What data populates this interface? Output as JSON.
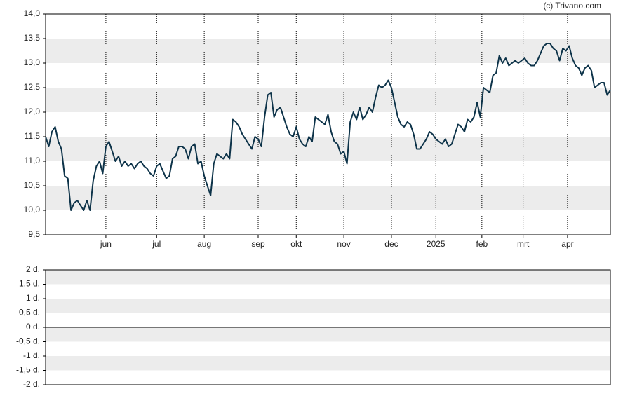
{
  "source": "(c) Trivano.com",
  "chart_data": [
    {
      "type": "line",
      "color": "#0d3349",
      "banded": true,
      "xlim": [
        0,
        178
      ],
      "xticks": [
        {
          "value": 19,
          "label": "jun"
        },
        {
          "value": 35,
          "label": "jul"
        },
        {
          "value": 50,
          "label": "aug"
        },
        {
          "value": 67,
          "label": "sep"
        },
        {
          "value": 79,
          "label": "okt"
        },
        {
          "value": 94,
          "label": "nov"
        },
        {
          "value": 109,
          "label": "dec"
        },
        {
          "value": 123,
          "label": "2025"
        },
        {
          "value": 137.5,
          "label": "feb"
        },
        {
          "value": 150.5,
          "label": "mrt"
        },
        {
          "value": 164.5,
          "label": "apr"
        }
      ],
      "ylim": [
        9.5,
        14
      ],
      "yticks": [
        {
          "value": 9.5,
          "label": "9,5"
        },
        {
          "value": 10,
          "label": "10,0"
        },
        {
          "value": 10.5,
          "label": "10,5"
        },
        {
          "value": 11,
          "label": "11,0"
        },
        {
          "value": 11.5,
          "label": "11,5"
        },
        {
          "value": 12,
          "label": "12,0"
        },
        {
          "value": 12.5,
          "label": "12,5"
        },
        {
          "value": 13,
          "label": "13,0"
        },
        {
          "value": 13.5,
          "label": "13,5"
        },
        {
          "value": 14,
          "label": "14,0"
        }
      ],
      "values": [
        11.5,
        11.3,
        11.6,
        11.7,
        11.4,
        11.25,
        10.7,
        10.65,
        10.0,
        10.15,
        10.2,
        10.1,
        10.0,
        10.2,
        10.0,
        10.6,
        10.9,
        11.0,
        10.75,
        11.3,
        11.4,
        11.2,
        11.0,
        11.1,
        10.9,
        11.0,
        10.9,
        10.95,
        10.85,
        10.95,
        11.0,
        10.9,
        10.85,
        10.75,
        10.7,
        10.9,
        10.95,
        10.8,
        10.65,
        10.7,
        11.05,
        11.1,
        11.3,
        11.3,
        11.25,
        11.05,
        11.3,
        11.35,
        10.95,
        11.0,
        10.7,
        10.5,
        10.3,
        10.95,
        11.15,
        11.1,
        11.05,
        11.15,
        11.05,
        11.85,
        11.8,
        11.7,
        11.55,
        11.45,
        11.35,
        11.25,
        11.5,
        11.45,
        11.3,
        11.9,
        12.35,
        12.4,
        11.9,
        12.05,
        12.1,
        11.9,
        11.7,
        11.55,
        11.5,
        11.7,
        11.45,
        11.35,
        11.3,
        11.5,
        11.4,
        11.9,
        11.85,
        11.8,
        11.75,
        11.95,
        11.6,
        11.4,
        11.35,
        11.15,
        11.2,
        10.95,
        11.8,
        12.0,
        11.85,
        12.1,
        11.85,
        11.95,
        12.1,
        12.0,
        12.3,
        12.55,
        12.5,
        12.55,
        12.65,
        12.5,
        12.2,
        11.9,
        11.75,
        11.7,
        11.8,
        11.75,
        11.55,
        11.25,
        11.25,
        11.35,
        11.45,
        11.6,
        11.55,
        11.45,
        11.4,
        11.35,
        11.45,
        11.3,
        11.35,
        11.55,
        11.75,
        11.7,
        11.6,
        11.85,
        11.8,
        11.9,
        12.2,
        11.9,
        12.5,
        12.45,
        12.4,
        12.75,
        12.8,
        13.15,
        13.0,
        13.1,
        12.95,
        13.0,
        13.05,
        13.0,
        13.05,
        13.1,
        13.0,
        12.95,
        12.95,
        13.05,
        13.2,
        13.35,
        13.4,
        13.4,
        13.3,
        13.25,
        13.05,
        13.3,
        13.25,
        13.35,
        13.1,
        12.95,
        12.9,
        12.75,
        12.9,
        12.95,
        12.85,
        12.5,
        12.55,
        12.6,
        12.6,
        12.35,
        12.45
      ]
    },
    {
      "type": "bar",
      "banded": true,
      "zero_line": true,
      "ylim": [
        -2,
        2
      ],
      "yticks": [
        {
          "value": -2,
          "label": "-2 d."
        },
        {
          "value": -1.5,
          "label": "-1,5 d."
        },
        {
          "value": -1,
          "label": "-1 d."
        },
        {
          "value": -0.5,
          "label": "-0,5 d."
        },
        {
          "value": 0,
          "label": "0 d."
        },
        {
          "value": 0.5,
          "label": "0,5 d."
        },
        {
          "value": 1,
          "label": "1 d."
        },
        {
          "value": 1.5,
          "label": "1,5 d."
        },
        {
          "value": 2,
          "label": "2 d."
        }
      ]
    }
  ]
}
